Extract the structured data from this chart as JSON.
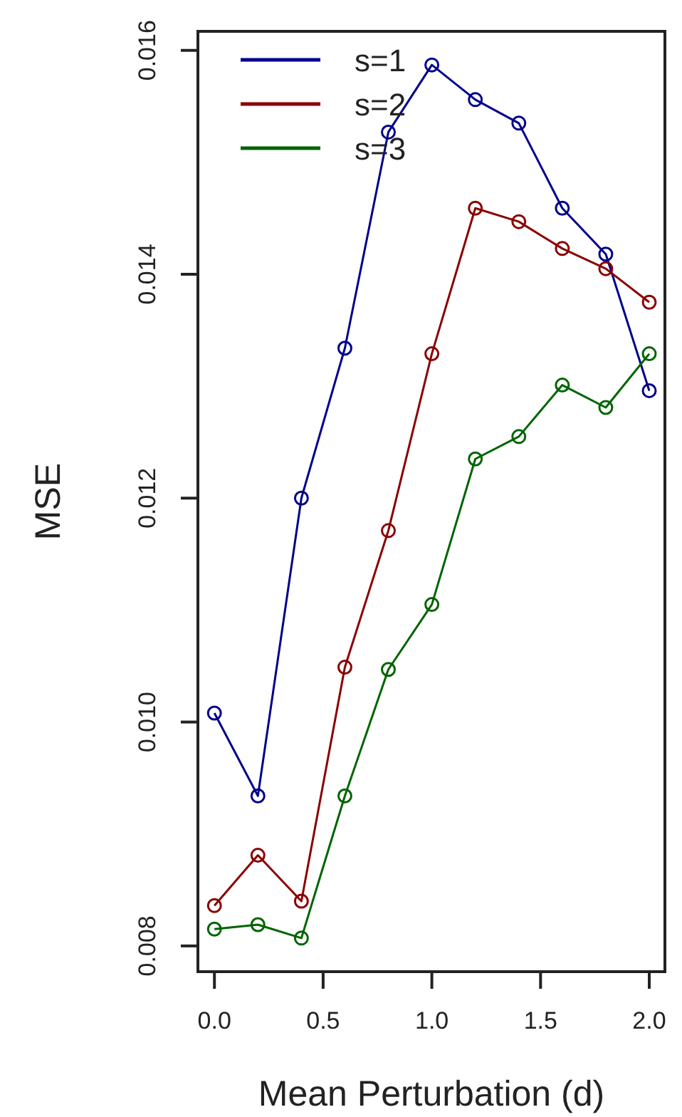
{
  "chart_data": {
    "type": "line",
    "xlabel": "Mean Perturbation (d)",
    "ylabel": "MSE",
    "x": [
      0,
      0.2,
      0.4,
      0.6,
      0.8,
      1.0,
      1.2,
      1.4,
      1.6,
      1.8,
      2.0
    ],
    "series": [
      {
        "name": "s=1",
        "color": "#00008b",
        "values": [
          0.01008,
          0.00934,
          0.012,
          0.01334,
          0.01527,
          0.01587,
          0.01556,
          0.01535,
          0.01459,
          0.01418,
          0.01296
        ]
      },
      {
        "name": "s=2",
        "color": "#8b0000",
        "values": [
          0.00836,
          0.00881,
          0.0084,
          0.01049,
          0.01171,
          0.01329,
          0.01459,
          0.01447,
          0.01423,
          0.01405,
          0.01375
        ]
      },
      {
        "name": "s=3",
        "color": "#006400",
        "values": [
          0.00815,
          0.00819,
          0.00807,
          0.00934,
          0.01047,
          0.01105,
          0.01235,
          0.01255,
          0.01301,
          0.01281,
          0.01329
        ]
      }
    ],
    "xlim": [
      -0.076,
      2.072
    ],
    "ylim": [
      0.00777,
      0.01617
    ],
    "xticks": [
      {
        "value": 0,
        "label": "0.0"
      },
      {
        "value": 0.5,
        "label": "0.5"
      },
      {
        "value": 1,
        "label": "1.0"
      },
      {
        "value": 1.5,
        "label": "1.5"
      },
      {
        "value": 2,
        "label": "2.0"
      }
    ],
    "yticks": [
      {
        "value": 0.008,
        "label": "0.008"
      },
      {
        "value": 0.01,
        "label": "0.010"
      },
      {
        "value": 0.012,
        "label": "0.012"
      },
      {
        "value": 0.014,
        "label": "0.014"
      },
      {
        "value": 0.016,
        "label": "0.016"
      }
    ],
    "marker": "circle",
    "legend": "top left",
    "grid": false
  }
}
